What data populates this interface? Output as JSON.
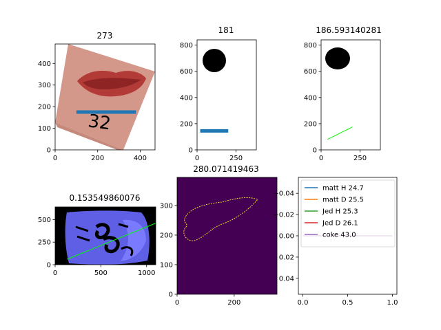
{
  "chart_data": [
    {
      "type": "image",
      "title": "273",
      "xticks": [
        "0",
        "200",
        "400"
      ],
      "yticks": [
        "0",
        "100",
        "200",
        "300",
        "400"
      ],
      "xlim": [
        0,
        470
      ],
      "ylim": [
        490,
        0
      ],
      "content": "photo of a tilted paper tag with a red lip-shaped smear and the handwritten number 32, a blue horizontal measurement line across the smear",
      "measure_line": {
        "x": [
          100,
          380
        ],
        "y": [
          175,
          175
        ],
        "color": "#1f77b4"
      },
      "handwritten_text": "32"
    },
    {
      "type": "image",
      "title": "181",
      "xticks": [
        "0",
        "250"
      ],
      "yticks": [
        "0",
        "200",
        "400",
        "600",
        "800"
      ],
      "xlim": [
        0,
        380
      ],
      "ylim": [
        840,
        0
      ],
      "content": "black filled ellipse on white background with a blue horizontal measurement line",
      "measure_line": {
        "x": [
          20,
          200
        ],
        "y": [
          145,
          145
        ],
        "color": "#1f77b4"
      }
    },
    {
      "type": "image",
      "title": "186.593140281",
      "xticks": [
        "0",
        "250"
      ],
      "yticks": [
        "0",
        "200",
        "400",
        "600",
        "800"
      ],
      "xlim": [
        0,
        380
      ],
      "ylim": [
        840,
        0
      ],
      "content": "black filled ellipse on white background with a green diagonal measurement line",
      "measure_line": {
        "x": [
          40,
          200
        ],
        "y": [
          80,
          175
        ],
        "color": "#00ff00"
      }
    },
    {
      "type": "image",
      "title": "0.153549860076",
      "xticks": [
        "0",
        "500",
        "1000"
      ],
      "yticks": [
        "0",
        "250",
        "500"
      ],
      "xlim": [
        0,
        1100
      ],
      "ylim": [
        640,
        0
      ],
      "content": "blue-tinted binary mask of a curved surface with black text/logo shapes and a green diagonal line",
      "measure_line": {
        "x": [
          130,
          1100
        ],
        "y": [
          60,
          460
        ],
        "color": "#00ff00"
      }
    },
    {
      "type": "image",
      "title": "280.071419463",
      "xticks": [
        "0",
        "200"
      ],
      "yticks": [
        "0",
        "100",
        "200",
        "300"
      ],
      "xlim": [
        0,
        350
      ],
      "ylim": [
        395,
        0
      ],
      "content": "dark purple (viridis) edge map with a thin yellow outline of the lip smear"
    },
    {
      "type": "line",
      "title": "",
      "xticks": [
        "0.0",
        "0.5",
        "1.0"
      ],
      "yticks": [
        "0.04",
        "0.02",
        "0.00",
        "−0.02",
        "−0.04"
      ],
      "xlim": [
        -0.05,
        1.05
      ],
      "ylim": [
        -0.055,
        0.055
      ],
      "legend_position": "upper left",
      "series": [
        {
          "name": "matt H 24.7",
          "color": "#1f77b4",
          "x": [
            0,
            1
          ],
          "y": [
            0,
            0
          ]
        },
        {
          "name": "matt D 25.5",
          "color": "#ff7f0e",
          "x": [
            0,
            1
          ],
          "y": [
            0,
            0
          ]
        },
        {
          "name": "Jed H 25.3",
          "color": "#2ca02c",
          "x": [
            0,
            1
          ],
          "y": [
            0,
            0
          ]
        },
        {
          "name": "Jed D 26.1",
          "color": "#d62728",
          "x": [
            0,
            1
          ],
          "y": [
            0,
            0
          ]
        },
        {
          "name": "coke 43.0",
          "color": "#9467bd",
          "x": [
            0,
            1
          ],
          "y": [
            0,
            0
          ]
        }
      ]
    }
  ]
}
